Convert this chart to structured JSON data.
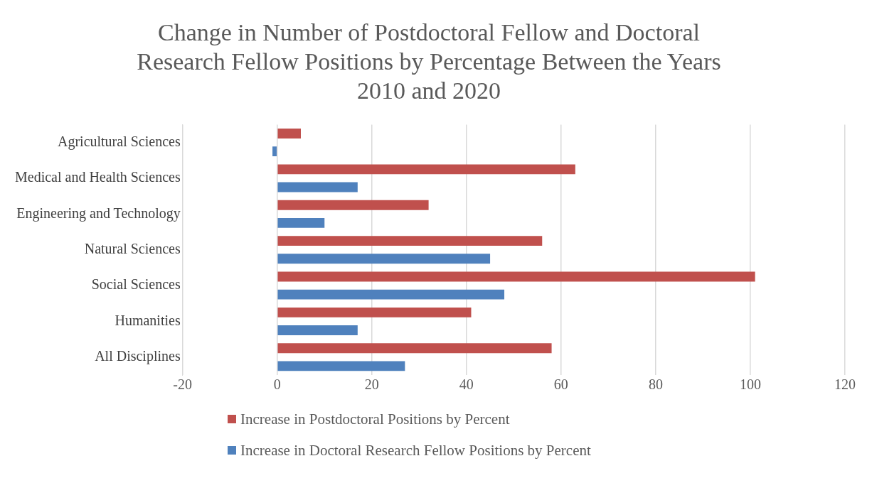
{
  "chart_data": {
    "type": "bar",
    "orientation": "horizontal",
    "title": "Change in Number of Postdoctoral Fellow and Doctoral Research Fellow Positions by Percentage Between the Years 2010 and 2020",
    "categories": [
      "Agricultural Sciences",
      "Medical and Health Sciences",
      "Engineering and Technology",
      "Natural Sciences",
      "Social Sciences",
      "Humanities",
      "All Disciplines"
    ],
    "series": [
      {
        "name": "Increase in Postdoctoral Positions by Percent",
        "color": "#c0504d",
        "values": [
          5,
          63,
          32,
          56,
          101,
          41,
          58
        ]
      },
      {
        "name": "Increase in Doctoral Research Fellow Positions by Percent",
        "color": "#4f81bd",
        "values": [
          -1,
          17,
          10,
          45,
          48,
          17,
          27
        ]
      }
    ],
    "xlim": [
      -20,
      120
    ],
    "xticks": [
      -20,
      0,
      20,
      40,
      60,
      80,
      100,
      120
    ],
    "grid": "x",
    "legend": "bottom"
  }
}
